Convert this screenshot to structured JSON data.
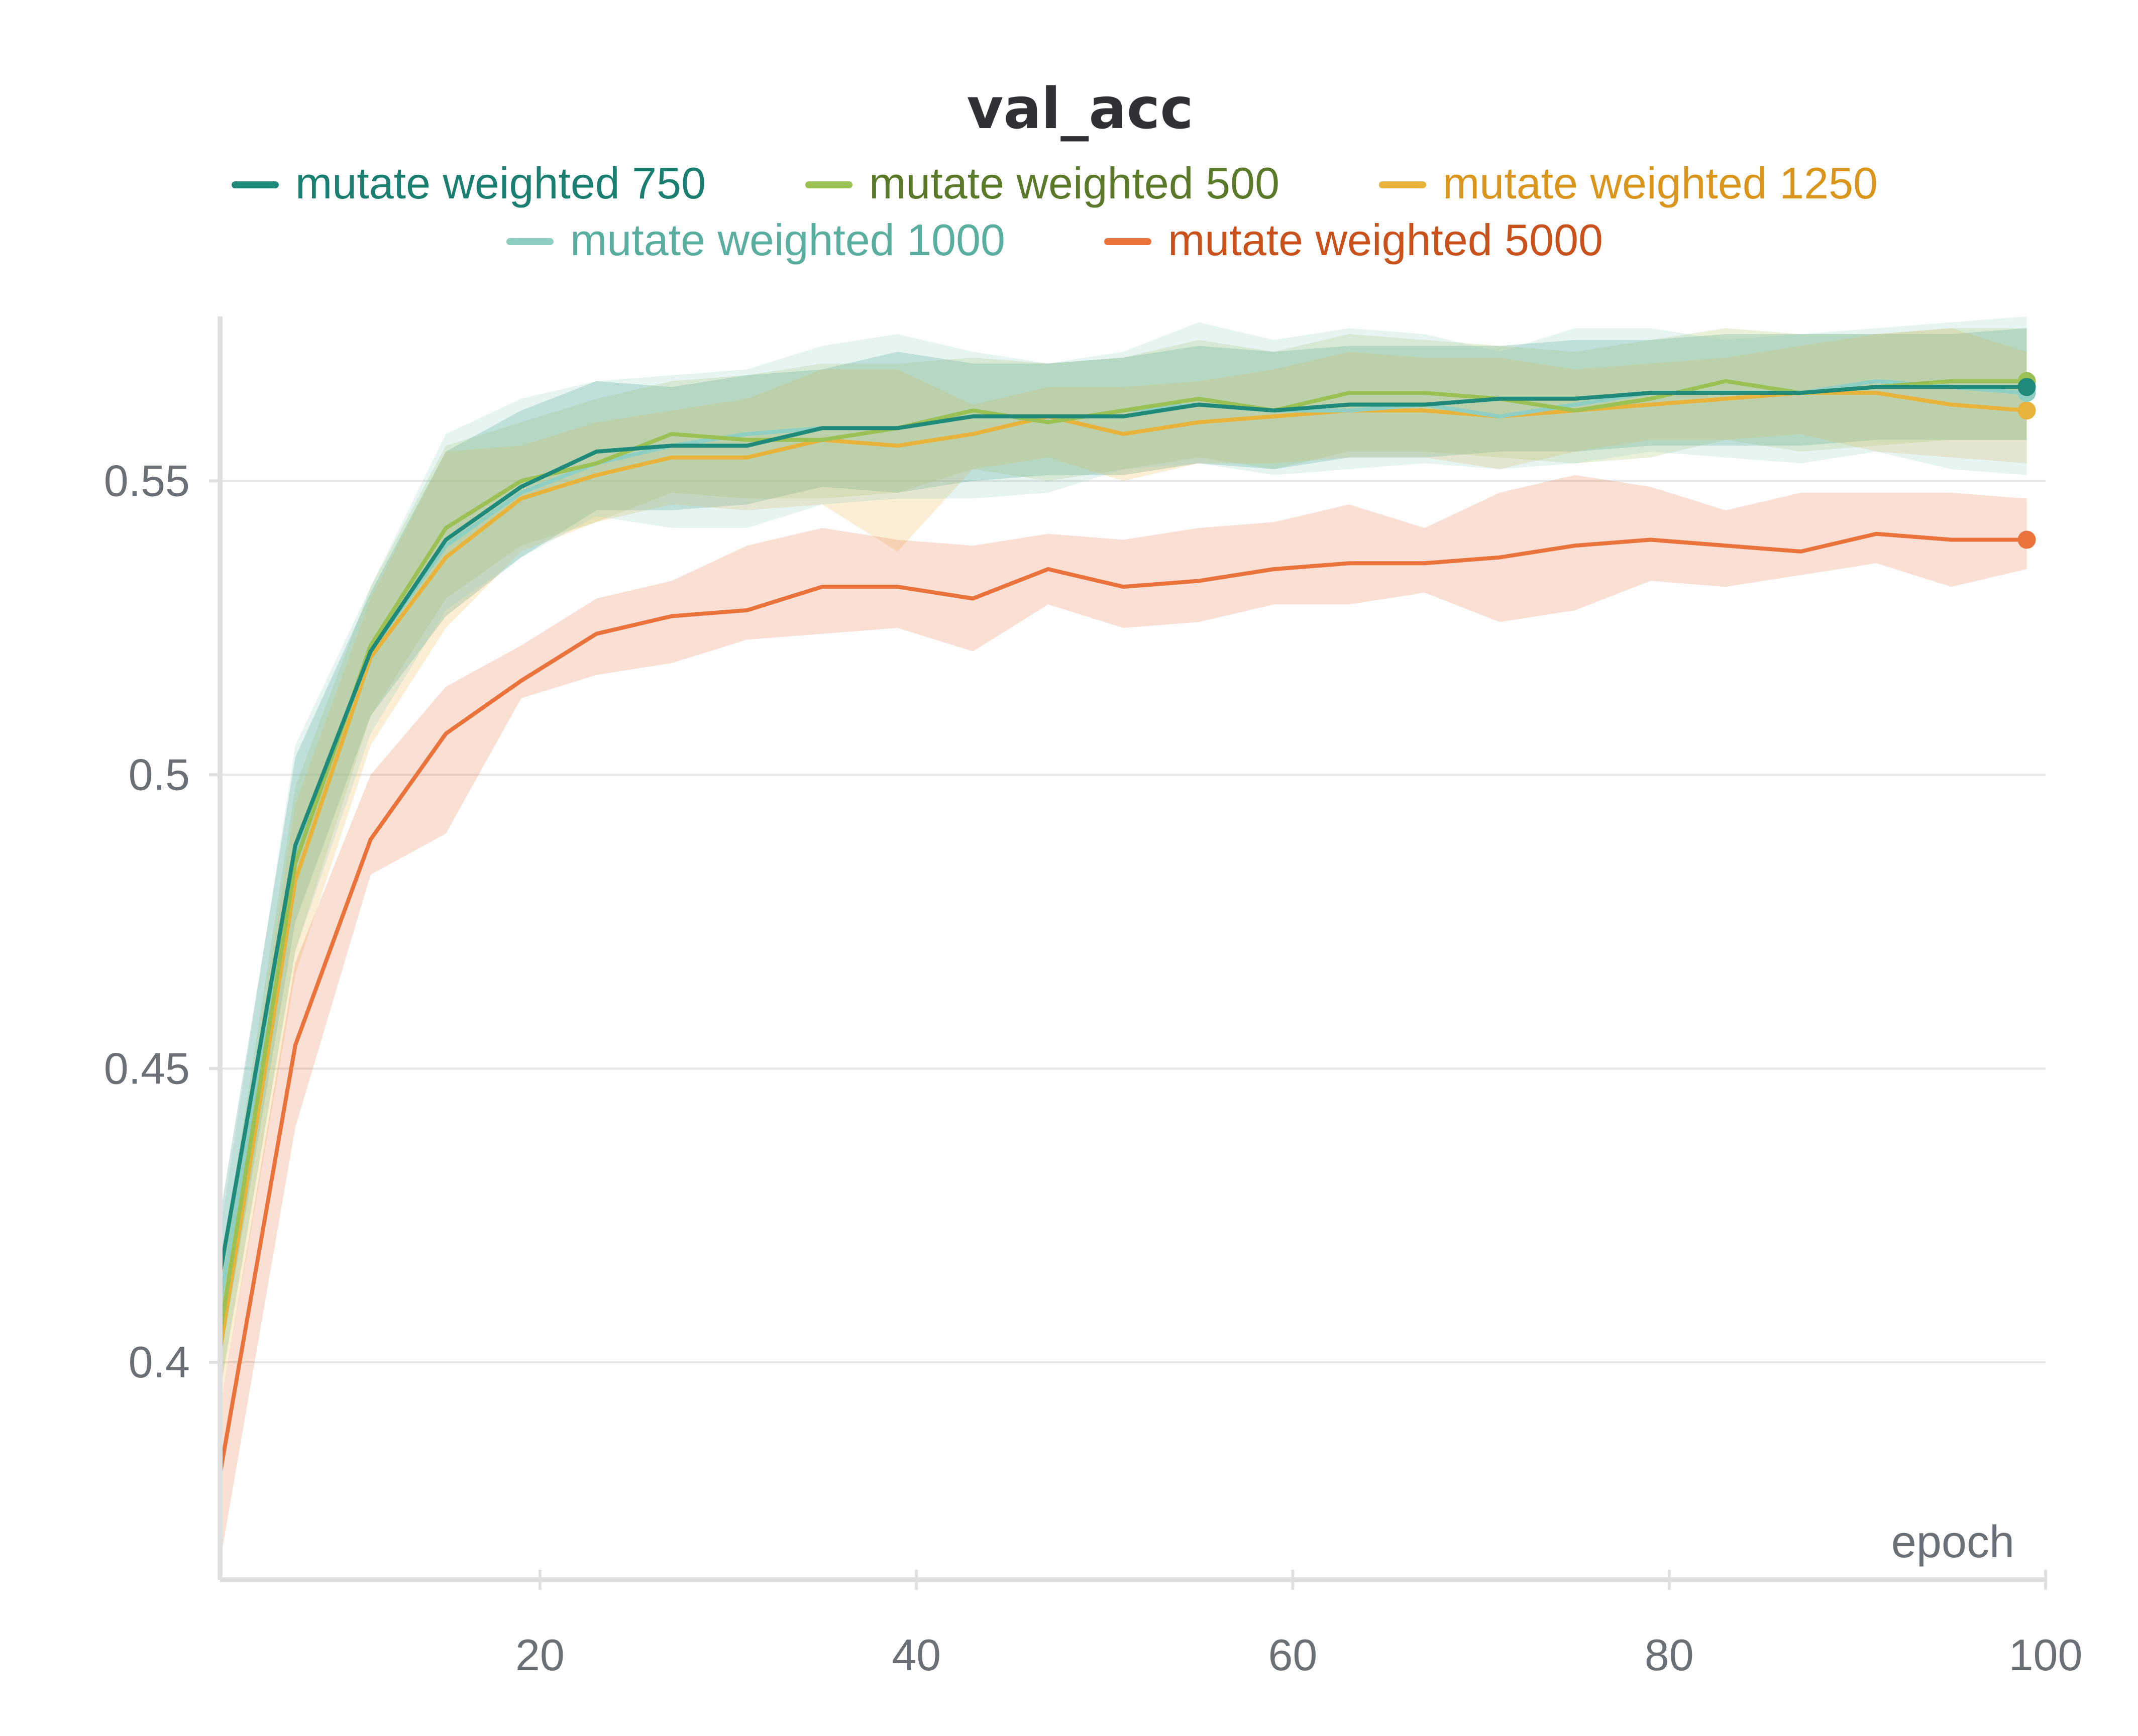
{
  "chart_data": {
    "type": "line",
    "title": "val_acc",
    "xlabel": "epoch",
    "ylabel": "",
    "xlim": [
      3,
      100
    ],
    "ylim": [
      0.363,
      0.578
    ],
    "x_ticks": [
      20,
      40,
      60,
      80,
      100
    ],
    "y_ticks": [
      0.4,
      0.45,
      0.5,
      0.55
    ],
    "x_tick_labels": [
      "20",
      "40",
      "60",
      "80",
      "100"
    ],
    "y_tick_labels": [
      "0.4",
      "0.45",
      "0.5",
      "0.55"
    ],
    "grid": "horizontal",
    "legend_position": "top-center",
    "x": [
      3,
      7,
      11,
      15,
      19,
      23,
      27,
      31,
      35,
      39,
      43,
      47,
      51,
      55,
      59,
      63,
      67,
      71,
      75,
      79,
      83,
      87,
      91,
      95,
      99
    ],
    "series": [
      {
        "name": "mutate weighted 750",
        "color": "#1f8a7a",
        "text_color": "#1a7f70",
        "values": [
          0.415,
          0.488,
          0.521,
          0.54,
          0.549,
          0.555,
          0.556,
          0.556,
          0.559,
          0.559,
          0.561,
          0.561,
          0.561,
          0.563,
          0.562,
          0.563,
          0.563,
          0.564,
          0.564,
          0.565,
          0.565,
          0.565,
          0.566,
          0.566,
          0.566
        ],
        "band_upper": [
          0.425,
          0.503,
          0.531,
          0.555,
          0.562,
          0.567,
          0.566,
          0.568,
          0.569,
          0.572,
          0.57,
          0.57,
          0.571,
          0.573,
          0.572,
          0.573,
          0.573,
          0.573,
          0.574,
          0.574,
          0.575,
          0.575,
          0.575,
          0.575,
          0.576
        ],
        "band_lower": [
          0.4,
          0.475,
          0.51,
          0.527,
          0.537,
          0.545,
          0.545,
          0.546,
          0.549,
          0.548,
          0.55,
          0.551,
          0.551,
          0.553,
          0.552,
          0.554,
          0.554,
          0.555,
          0.555,
          0.556,
          0.556,
          0.556,
          0.557,
          0.557,
          0.557
        ]
      },
      {
        "name": "mutate weighted 500",
        "color": "#9bc053",
        "text_color": "#5a7a2a",
        "values": [
          0.405,
          0.485,
          0.522,
          0.542,
          0.55,
          0.553,
          0.558,
          0.557,
          0.557,
          0.559,
          0.562,
          0.56,
          0.562,
          0.564,
          0.562,
          0.565,
          0.565,
          0.564,
          0.562,
          0.564,
          0.567,
          0.565,
          0.566,
          0.567,
          0.567
        ],
        "band_upper": [
          0.415,
          0.498,
          0.532,
          0.556,
          0.56,
          0.564,
          0.567,
          0.568,
          0.57,
          0.57,
          0.571,
          0.57,
          0.571,
          0.574,
          0.572,
          0.575,
          0.574,
          0.573,
          0.572,
          0.574,
          0.576,
          0.575,
          0.575,
          0.576,
          0.576
        ],
        "band_lower": [
          0.395,
          0.47,
          0.51,
          0.53,
          0.539,
          0.543,
          0.548,
          0.547,
          0.547,
          0.548,
          0.552,
          0.55,
          0.552,
          0.554,
          0.552,
          0.555,
          0.555,
          0.554,
          0.553,
          0.554,
          0.557,
          0.555,
          0.556,
          0.557,
          0.557
        ]
      },
      {
        "name": "mutate weighted 1250",
        "color": "#e8b33a",
        "text_color": "#d9951c",
        "values": [
          0.402,
          0.482,
          0.52,
          0.537,
          0.547,
          0.551,
          0.554,
          0.554,
          0.557,
          0.556,
          0.558,
          0.561,
          0.558,
          0.56,
          0.561,
          0.562,
          0.562,
          0.561,
          0.562,
          0.563,
          0.564,
          0.565,
          0.565,
          0.563,
          0.562
        ],
        "band_upper": [
          0.412,
          0.495,
          0.53,
          0.555,
          0.556,
          0.56,
          0.562,
          0.564,
          0.569,
          0.569,
          0.563,
          0.566,
          0.566,
          0.567,
          0.569,
          0.572,
          0.571,
          0.571,
          0.569,
          0.57,
          0.571,
          0.573,
          0.575,
          0.576,
          0.572
        ],
        "band_lower": [
          0.392,
          0.466,
          0.505,
          0.525,
          0.538,
          0.543,
          0.546,
          0.545,
          0.546,
          0.538,
          0.552,
          0.554,
          0.55,
          0.553,
          0.553,
          0.554,
          0.554,
          0.552,
          0.555,
          0.557,
          0.557,
          0.558,
          0.555,
          0.554,
          0.553
        ]
      },
      {
        "name": "mutate weighted 1000",
        "color": "#8fcfc3",
        "text_color": "#5aae9f",
        "values": [
          0.41,
          0.487,
          0.521,
          0.539,
          0.548,
          0.553,
          0.556,
          0.558,
          0.559,
          0.559,
          0.562,
          0.56,
          0.562,
          0.563,
          0.562,
          0.562,
          0.563,
          0.561,
          0.563,
          0.565,
          0.565,
          0.565,
          0.567,
          0.566,
          0.565
        ],
        "band_upper": [
          0.422,
          0.505,
          0.532,
          0.558,
          0.564,
          0.567,
          0.568,
          0.569,
          0.573,
          0.575,
          0.572,
          0.57,
          0.572,
          0.577,
          0.574,
          0.576,
          0.575,
          0.572,
          0.576,
          0.576,
          0.574,
          0.575,
          0.576,
          0.577,
          0.578
        ],
        "band_lower": [
          0.395,
          0.47,
          0.507,
          0.528,
          0.537,
          0.544,
          0.542,
          0.542,
          0.546,
          0.547,
          0.547,
          0.548,
          0.552,
          0.553,
          0.551,
          0.552,
          0.553,
          0.552,
          0.553,
          0.555,
          0.554,
          0.553,
          0.555,
          0.552,
          0.551
        ]
      },
      {
        "name": "mutate weighted 5000",
        "color": "#e9733a",
        "text_color": "#c9521c",
        "values": [
          0.381,
          0.454,
          0.489,
          0.507,
          0.516,
          0.524,
          0.527,
          0.528,
          0.532,
          0.532,
          0.53,
          0.535,
          0.532,
          0.533,
          0.535,
          0.536,
          0.536,
          0.537,
          0.539,
          0.54,
          0.539,
          0.538,
          0.541,
          0.54,
          0.54
        ],
        "band_upper": [
          0.392,
          0.468,
          0.5,
          0.515,
          0.522,
          0.53,
          0.533,
          0.539,
          0.542,
          0.54,
          0.539,
          0.541,
          0.54,
          0.542,
          0.543,
          0.546,
          0.542,
          0.548,
          0.551,
          0.549,
          0.545,
          0.548,
          0.548,
          0.548,
          0.547
        ],
        "band_lower": [
          0.366,
          0.44,
          0.483,
          0.49,
          0.513,
          0.517,
          0.519,
          0.523,
          0.524,
          0.525,
          0.521,
          0.529,
          0.525,
          0.526,
          0.529,
          0.529,
          0.531,
          0.526,
          0.528,
          0.533,
          0.532,
          0.534,
          0.536,
          0.532,
          0.535
        ]
      }
    ]
  }
}
